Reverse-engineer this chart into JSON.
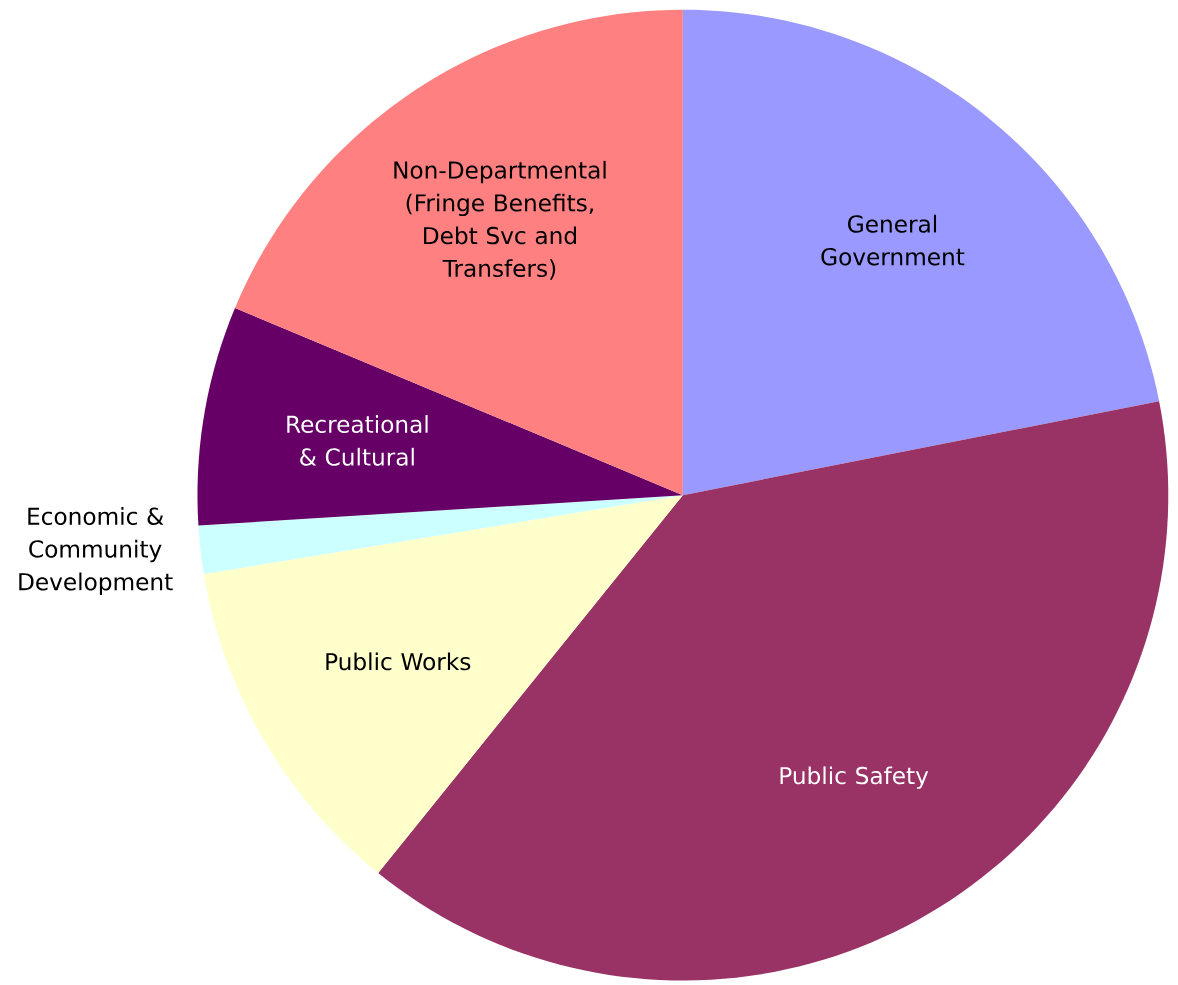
{
  "chart_data": {
    "type": "pie",
    "categories": [
      "General Government",
      "Public Safety",
      "Public Works",
      "Economic & Community Development",
      "Recreational & Cultural",
      "Non-Departmental (Fringe Benefits, Debt Svc and Transfers)"
    ],
    "values": [
      21.9,
      38.9,
      11.6,
      1.6,
      7.3,
      18.7
    ],
    "colors": [
      "#9999ff",
      "#993366",
      "#ffffcc",
      "#ccffff",
      "#660066",
      "#ff8080"
    ]
  }
}
